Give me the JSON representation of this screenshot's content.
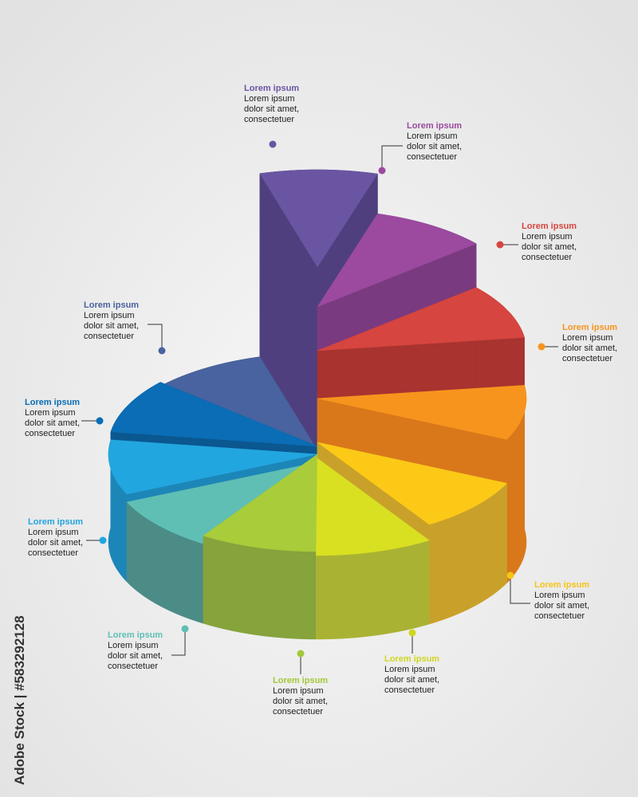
{
  "callouts": [
    {
      "title": "Lorem ipsum",
      "lines": [
        "Lorem ipsum",
        "dolor sit amet,",
        "consectetuer"
      ],
      "color": "#6a55a3"
    },
    {
      "title": "Lorem ipsum",
      "lines": [
        "Lorem ipsum",
        "dolor sit amet,",
        "consectetuer"
      ],
      "color": "#9b4a9f"
    },
    {
      "title": "Lorem ipsum",
      "lines": [
        "Lorem ipsum",
        "dolor sit amet,",
        "consectetuer"
      ],
      "color": "#d6453f"
    },
    {
      "title": "Lorem ipsum",
      "lines": [
        "Lorem ipsum",
        "dolor sit amet,",
        "consectetuer"
      ],
      "color": "#f7941d"
    },
    {
      "title": "Lorem ipsum",
      "lines": [
        "Lorem ipsum",
        "dolor sit amet,",
        "consectetuer"
      ],
      "color": "#f5c518"
    },
    {
      "title": "Lorem ipsum",
      "lines": [
        "Lorem ipsum",
        "dolor sit amet,",
        "consectetuer"
      ],
      "color": "#cfd61f"
    },
    {
      "title": "Lorem ipsum",
      "lines": [
        "Lorem ipsum",
        "dolor sit amet,",
        "consectetuer"
      ],
      "color": "#a2c83a"
    },
    {
      "title": "Lorem ipsum",
      "lines": [
        "Lorem ipsum",
        "dolor sit amet,",
        "consectetuer"
      ],
      "color": "#5fbfb5"
    },
    {
      "title": "Lorem ipsum",
      "lines": [
        "Lorem ipsum",
        "dolor sit amet,",
        "consectetuer"
      ],
      "color": "#22a6df"
    },
    {
      "title": "Lorem ipsum",
      "lines": [
        "Lorem ipsum",
        "dolor sit amet,",
        "consectetuer"
      ],
      "color": "#0a6db5"
    },
    {
      "title": "Lorem ipsum",
      "lines": [
        "Lorem ipsum",
        "dolor sit amet,",
        "consectetuer"
      ],
      "color": "#48639f"
    }
  ],
  "watermark": "Adobe Stock | #583292128"
}
